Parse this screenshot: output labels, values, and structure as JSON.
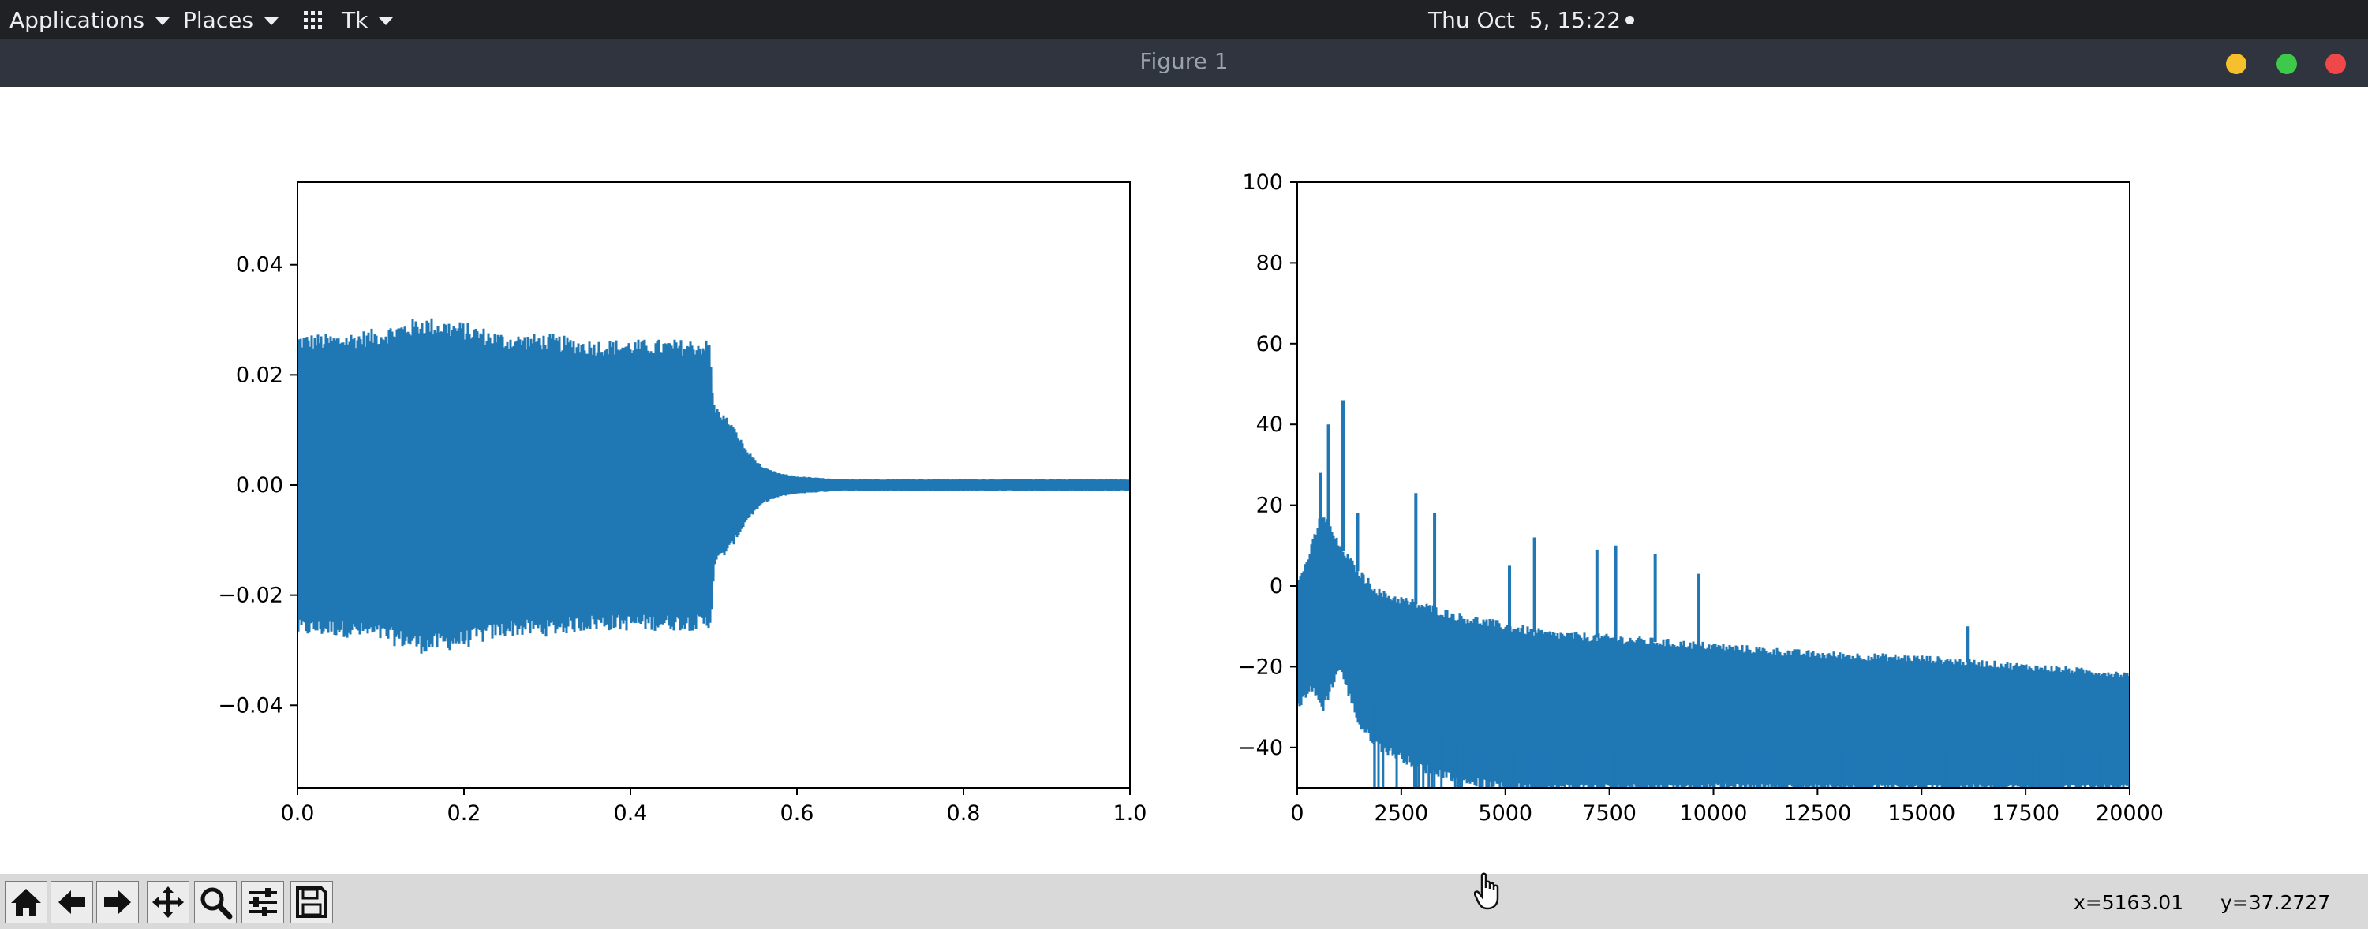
{
  "top_panel": {
    "applications_label": "Applications",
    "places_label": "Places",
    "app_label": "Tk",
    "clock": "Thu Oct  5, 15:22"
  },
  "window": {
    "title": "Figure 1",
    "buttons": {
      "minimize_color": "#f5c02b",
      "maximize_color": "#3ec94a",
      "close_color": "#f04848"
    }
  },
  "toolbar": {
    "buttons": [
      "home-icon",
      "back-arrow-icon",
      "forward-arrow-icon",
      "pan-move-icon",
      "zoom-magnifier-icon",
      "subplots-config-icon",
      "save-disk-icon"
    ],
    "x_readout": "x=5163.01",
    "y_readout": "y=37.2727"
  },
  "colors": {
    "line": "#1f77b4",
    "panel": "#1f2125",
    "titlebar": "#2f343f",
    "toolbar": "#d9d9d9"
  },
  "chart_data": [
    {
      "type": "line",
      "title": "",
      "xlabel": "",
      "ylabel": "",
      "xlim": [
        0.0,
        1.0
      ],
      "ylim": [
        -0.055,
        0.055
      ],
      "xticks": [
        "0.0",
        "0.2",
        "0.4",
        "0.6",
        "0.8",
        "1.0"
      ],
      "xtick_values": [
        0.0,
        0.2,
        0.4,
        0.6,
        0.8,
        1.0
      ],
      "yticks": [
        "−0.04",
        "−0.02",
        "0.00",
        "0.02",
        "0.04"
      ],
      "ytick_values": [
        -0.04,
        -0.02,
        0.0,
        0.02,
        0.04
      ],
      "envelope": {
        "x": [
          0.0,
          0.05,
          0.1,
          0.15,
          0.2,
          0.25,
          0.3,
          0.35,
          0.4,
          0.45,
          0.495,
          0.5,
          0.52,
          0.54,
          0.56,
          0.58,
          0.6,
          0.65,
          0.7,
          0.8,
          0.9,
          1.0
        ],
        "upper": [
          0.026,
          0.026,
          0.027,
          0.029,
          0.028,
          0.026,
          0.026,
          0.025,
          0.025,
          0.025,
          0.025,
          0.014,
          0.011,
          0.006,
          0.003,
          0.002,
          0.0015,
          0.001,
          0.001,
          0.001,
          0.001,
          0.001
        ],
        "lower": [
          -0.026,
          -0.026,
          -0.027,
          -0.029,
          -0.028,
          -0.026,
          -0.026,
          -0.025,
          -0.025,
          -0.025,
          -0.025,
          -0.014,
          -0.011,
          -0.006,
          -0.003,
          -0.002,
          -0.0015,
          -0.001,
          -0.001,
          -0.001,
          -0.001,
          -0.001
        ]
      }
    },
    {
      "type": "line",
      "title": "",
      "xlabel": "",
      "ylabel": "",
      "xlim": [
        0,
        20000
      ],
      "ylim": [
        -50,
        100
      ],
      "xticks": [
        "0",
        "2500",
        "5000",
        "7500",
        "10000",
        "12500",
        "15000",
        "17500",
        "20000"
      ],
      "xtick_values": [
        0,
        2500,
        5000,
        7500,
        10000,
        12500,
        15000,
        17500,
        20000
      ],
      "yticks": [
        "−40",
        "−20",
        "0",
        "20",
        "40",
        "60",
        "80",
        "100"
      ],
      "ytick_values": [
        -40,
        -20,
        0,
        20,
        40,
        60,
        80,
        100
      ],
      "envelope": {
        "x": [
          0,
          300,
          600,
          1000,
          1500,
          2000,
          3000,
          4000,
          5000,
          6000,
          7500,
          10000,
          12500,
          15000,
          17500,
          20000
        ],
        "upper": [
          0,
          8,
          18,
          10,
          3,
          -2,
          -5,
          -8,
          -10,
          -12,
          -13,
          -15,
          -17,
          -18,
          -20,
          -22
        ],
        "lower": [
          -30,
          -25,
          -30,
          -20,
          -35,
          -40,
          -45,
          -48,
          -50,
          -50,
          -50,
          -50,
          -50,
          -50,
          -50,
          -50
        ]
      },
      "peaks": {
        "x": [
          300,
          550,
          750,
          1100,
          1450,
          2850,
          3300,
          5100,
          5700,
          7200,
          7650,
          8600,
          9650,
          16100
        ],
        "y": [
          8,
          28,
          40,
          46,
          18,
          23,
          18,
          5,
          12,
          9,
          10,
          8,
          3,
          -10
        ]
      }
    }
  ]
}
